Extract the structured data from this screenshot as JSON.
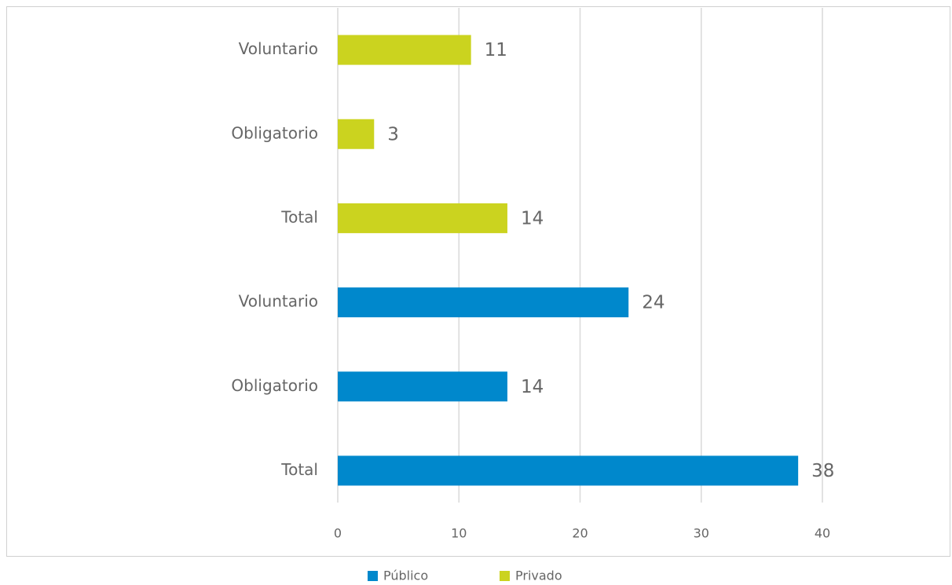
{
  "chart_data": {
    "type": "hbar",
    "categories": [
      "Voluntario",
      "Obligatorio",
      "Total",
      "Voluntario",
      "Obligatorio",
      "Total"
    ],
    "series": [
      {
        "name": "Público",
        "color": "#0088cc",
        "values": [
          null,
          null,
          null,
          24,
          14,
          38
        ]
      },
      {
        "name": "Privado",
        "color": "#cbd31f",
        "values": [
          11,
          3,
          14,
          null,
          null,
          null
        ]
      }
    ],
    "xlim": [
      0,
      40
    ],
    "xticks": [
      0,
      10,
      20,
      30,
      40
    ],
    "grid": true,
    "legend": "bottom"
  }
}
